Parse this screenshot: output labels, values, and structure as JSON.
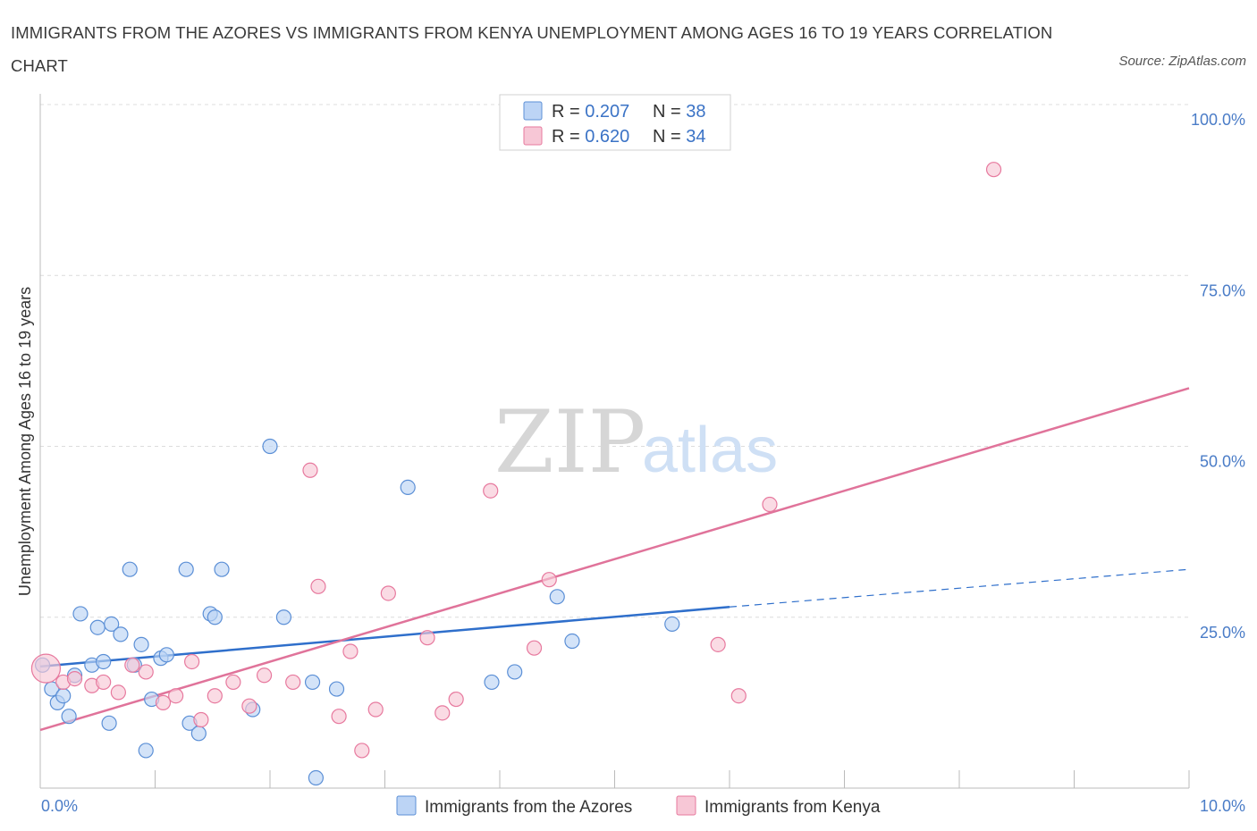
{
  "title": "IMMIGRANTS FROM THE AZORES VS IMMIGRANTS FROM KENYA UNEMPLOYMENT AMONG AGES 16 TO 19 YEARS CORRELATION CHART",
  "source": "Source: ZipAtlas.com",
  "watermark": {
    "zip": "ZIP",
    "atlas": "atlas"
  },
  "colors": {
    "azores": "#5b8fd6",
    "azores_fill": "#bcd4f5",
    "azores_line": "#2f6fcb",
    "kenya": "#e7799e",
    "kenya_fill": "#f7c7d6",
    "kenya_line": "#e0739a"
  },
  "legend": {
    "azores": {
      "r_label": "R = ",
      "r_value": "0.207",
      "n_label": "N = ",
      "n_value": "38"
    },
    "kenya": {
      "r_label": "R = ",
      "r_value": "0.620",
      "n_label": "N = ",
      "n_value": "34"
    }
  },
  "chart_data": {
    "type": "scatter",
    "title": "IMMIGRANTS FROM THE AZORES VS IMMIGRANTS FROM KENYA UNEMPLOYMENT AMONG AGES 16 TO 19 YEARS CORRELATION CHART",
    "xlabel": "",
    "ylabel": "Unemployment Among Ages 16 to 19 years",
    "xlim": [
      0,
      10
    ],
    "ylim": [
      0,
      100
    ],
    "x_tick_labels": [
      "0.0%",
      "10.0%"
    ],
    "y_ticks": [
      25,
      50,
      75,
      100
    ],
    "y_tick_labels": [
      "25.0%",
      "50.0%",
      "75.0%",
      "100.0%"
    ],
    "grid": true,
    "legend_position": "top-center",
    "series": [
      {
        "name": "Immigrants from the Azores",
        "points": [
          [
            0.02,
            18.0
          ],
          [
            0.1,
            14.5
          ],
          [
            0.15,
            12.5
          ],
          [
            0.2,
            13.5
          ],
          [
            0.25,
            10.5
          ],
          [
            0.3,
            16.5
          ],
          [
            0.35,
            25.5
          ],
          [
            0.45,
            18.0
          ],
          [
            0.5,
            23.5
          ],
          [
            0.55,
            18.5
          ],
          [
            0.6,
            9.5
          ],
          [
            0.62,
            24.0
          ],
          [
            0.7,
            22.5
          ],
          [
            0.78,
            32.0
          ],
          [
            0.82,
            18.0
          ],
          [
            0.88,
            21.0
          ],
          [
            0.92,
            5.5
          ],
          [
            0.97,
            13.0
          ],
          [
            1.05,
            19.0
          ],
          [
            1.1,
            19.5
          ],
          [
            1.27,
            32.0
          ],
          [
            1.3,
            9.5
          ],
          [
            1.38,
            8.0
          ],
          [
            1.48,
            25.5
          ],
          [
            1.52,
            25.0
          ],
          [
            1.58,
            32.0
          ],
          [
            1.85,
            11.5
          ],
          [
            2.0,
            50.0
          ],
          [
            2.12,
            25.0
          ],
          [
            2.37,
            15.5
          ],
          [
            2.4,
            1.5
          ],
          [
            2.58,
            14.5
          ],
          [
            3.2,
            44.0
          ],
          [
            3.93,
            15.5
          ],
          [
            4.13,
            17.0
          ],
          [
            4.5,
            28.0
          ],
          [
            4.63,
            21.5
          ],
          [
            5.5,
            24.0
          ]
        ],
        "trend": {
          "x": [
            0,
            6.0
          ],
          "y": [
            17.8,
            26.5
          ],
          "dashed_extension": {
            "x": [
              6.0,
              10.0
            ],
            "y": [
              26.5,
              32.0
            ]
          }
        }
      },
      {
        "name": "Immigrants from Kenya",
        "points": [
          [
            0.05,
            17.5
          ],
          [
            0.2,
            15.5
          ],
          [
            0.3,
            16.0
          ],
          [
            0.45,
            15.0
          ],
          [
            0.55,
            15.5
          ],
          [
            0.68,
            14.0
          ],
          [
            0.8,
            18.0
          ],
          [
            0.92,
            17.0
          ],
          [
            1.07,
            12.5
          ],
          [
            1.18,
            13.5
          ],
          [
            1.32,
            18.5
          ],
          [
            1.4,
            10.0
          ],
          [
            1.52,
            13.5
          ],
          [
            1.68,
            15.5
          ],
          [
            1.82,
            12.0
          ],
          [
            1.95,
            16.5
          ],
          [
            2.2,
            15.5
          ],
          [
            2.35,
            46.5
          ],
          [
            2.42,
            29.5
          ],
          [
            2.6,
            10.5
          ],
          [
            2.7,
            20.0
          ],
          [
            2.8,
            5.5
          ],
          [
            2.92,
            11.5
          ],
          [
            3.03,
            28.5
          ],
          [
            3.37,
            22.0
          ],
          [
            3.5,
            11.0
          ],
          [
            3.62,
            13.0
          ],
          [
            3.92,
            43.5
          ],
          [
            4.3,
            20.5
          ],
          [
            4.43,
            30.5
          ],
          [
            5.9,
            21.0
          ],
          [
            6.08,
            13.5
          ],
          [
            6.35,
            41.5
          ],
          [
            8.3,
            90.5
          ]
        ],
        "trend": {
          "x": [
            0,
            10.0
          ],
          "y": [
            8.5,
            58.5
          ]
        }
      }
    ]
  }
}
